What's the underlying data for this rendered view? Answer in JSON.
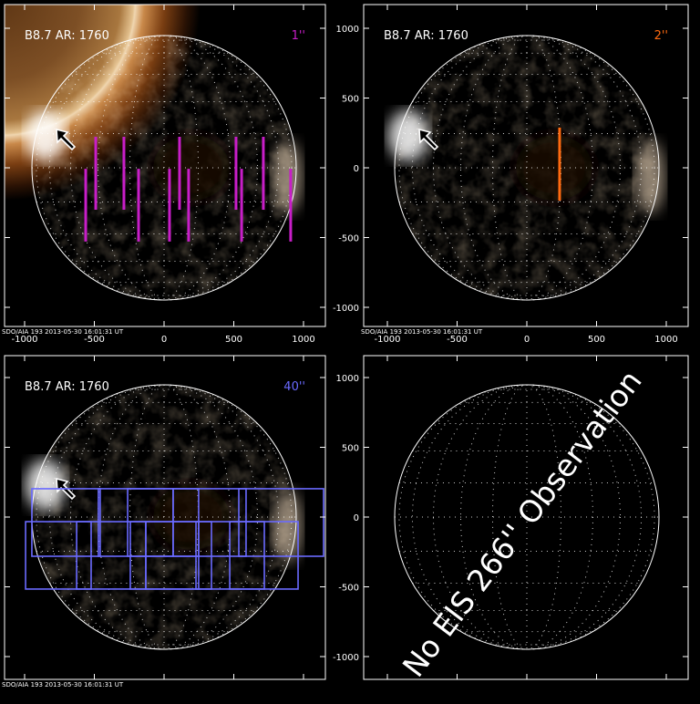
{
  "panels": [
    {
      "label": "B8.7 AR: 1760",
      "slit_label": "1''",
      "slit_color": "#c81ec8",
      "footer": "SDO/AIA 193 2013-05-30 16:01:31 UT",
      "slits": [
        {
          "x": -562,
          "y1": -7,
          "y2": -529
        },
        {
          "x": -490,
          "y1": 222,
          "y2": -301
        },
        {
          "x": -288,
          "y1": 222,
          "y2": -301
        },
        {
          "x": -183,
          "y1": -7,
          "y2": -529
        },
        {
          "x": 39,
          "y1": -7,
          "y2": -529
        },
        {
          "x": 111,
          "y1": 222,
          "y2": -301
        },
        {
          "x": 176,
          "y1": -7,
          "y2": -529
        },
        {
          "x": 516,
          "y1": 222,
          "y2": -301
        },
        {
          "x": 556,
          "y1": -7,
          "y2": -529
        },
        {
          "x": 712,
          "y1": 222,
          "y2": -301
        },
        {
          "x": 908,
          "y1": -7,
          "y2": -529
        }
      ]
    },
    {
      "label": "B8.7 AR: 1760",
      "slit_label": "2''",
      "slit_color": "#ff6a10",
      "footer": "SDO/AIA 193 2013-05-30 16:01:31 UT",
      "slits": [
        {
          "x": 235,
          "y1": 288,
          "y2": -235
        }
      ]
    },
    {
      "label": "B8.7 AR: 1760",
      "slit_label": "40''",
      "slit_color": "#6a6aff",
      "footer": "SDO/AIA 193 2013-05-30 16:01:31 UT",
      "boxes": [
        {
          "x1": -948,
          "x2": -458,
          "y1": 203,
          "y2": -281
        },
        {
          "x1": -471,
          "x2": 65,
          "y1": 203,
          "y2": -281
        },
        {
          "x1": -261,
          "x2": 248,
          "y1": 203,
          "y2": -281
        },
        {
          "x1": 65,
          "x2": 588,
          "y1": 203,
          "y2": -281
        },
        {
          "x1": 536,
          "x2": 1144,
          "y1": 203,
          "y2": -281
        },
        {
          "x1": -993,
          "x2": -523,
          "y1": -33,
          "y2": -516
        },
        {
          "x1": -627,
          "x2": -131,
          "y1": -33,
          "y2": -516
        },
        {
          "x1": -242,
          "x2": 248,
          "y1": -33,
          "y2": -516
        },
        {
          "x1": -131,
          "x2": 340,
          "y1": -33,
          "y2": -516
        },
        {
          "x1": 229,
          "x2": 719,
          "y1": -33,
          "y2": -516
        },
        {
          "x1": 471,
          "x2": 961,
          "y1": -33,
          "y2": -516
        }
      ]
    },
    {
      "annotation": "No EIS 266'' Observation"
    }
  ],
  "axes": {
    "ticks": [
      -1000,
      -500,
      0,
      500,
      1000
    ]
  }
}
